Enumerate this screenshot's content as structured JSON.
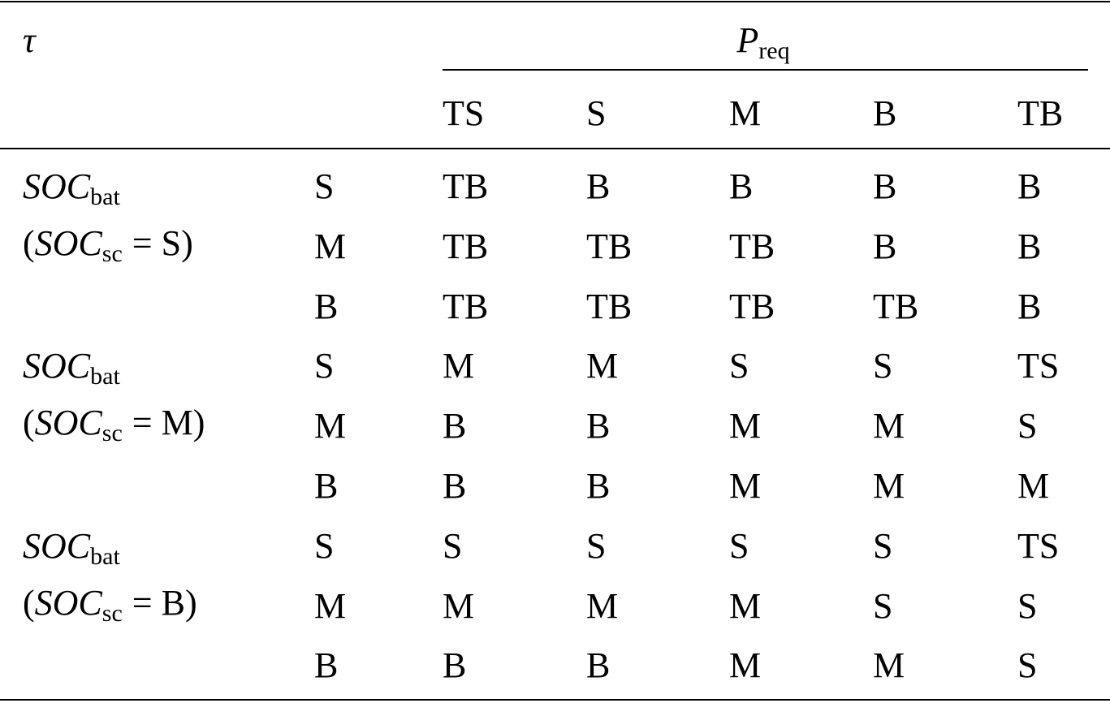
{
  "table": {
    "corner": "τ",
    "column_group": {
      "symbol": "P",
      "subscript": "req"
    },
    "columns": [
      "TS",
      "S",
      "M",
      "B",
      "TB"
    ],
    "groups": [
      {
        "label": {
          "symbol": "SOC",
          "subscript": "bat"
        },
        "condition": {
          "prefix": "(",
          "symbol": "SOC",
          "subscript": "sc",
          "suffix": "= S)"
        },
        "rows": [
          {
            "level": "S",
            "cells": [
              "TB",
              "B",
              "B",
              "B",
              "B"
            ]
          },
          {
            "level": "M",
            "cells": [
              "TB",
              "TB",
              "TB",
              "B",
              "B"
            ]
          },
          {
            "level": "B",
            "cells": [
              "TB",
              "TB",
              "TB",
              "TB",
              "B"
            ]
          }
        ]
      },
      {
        "label": {
          "symbol": "SOC",
          "subscript": "bat"
        },
        "condition": {
          "prefix": "(",
          "symbol": "SOC",
          "subscript": "sc",
          "suffix": "= M)"
        },
        "rows": [
          {
            "level": "S",
            "cells": [
              "M",
              "M",
              "S",
              "S",
              "TS"
            ]
          },
          {
            "level": "M",
            "cells": [
              "B",
              "B",
              "M",
              "M",
              "S"
            ]
          },
          {
            "level": "B",
            "cells": [
              "B",
              "B",
              "M",
              "M",
              "M"
            ]
          }
        ]
      },
      {
        "label": {
          "symbol": "SOC",
          "subscript": "bat"
        },
        "condition": {
          "prefix": "(",
          "symbol": "SOC",
          "subscript": "sc",
          "suffix": "= B)"
        },
        "rows": [
          {
            "level": "S",
            "cells": [
              "S",
              "S",
              "S",
              "S",
              "TS"
            ]
          },
          {
            "level": "M",
            "cells": [
              "M",
              "M",
              "M",
              "S",
              "S"
            ]
          },
          {
            "level": "B",
            "cells": [
              "B",
              "B",
              "M",
              "M",
              "S"
            ]
          }
        ]
      }
    ]
  }
}
